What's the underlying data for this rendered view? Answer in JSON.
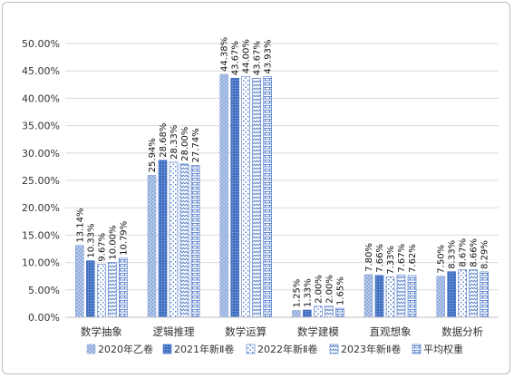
{
  "chart_data": {
    "type": "bar",
    "title": "",
    "xlabel": "",
    "ylabel": "",
    "categories": [
      "数学抽象",
      "逻辑推理",
      "数学运算",
      "数学建模",
      "直观想象",
      "数据分析"
    ],
    "ylim": [
      0,
      50
    ],
    "yticks": [
      "0.00%",
      "5.00%",
      "10.00%",
      "15.00%",
      "20.00%",
      "25.00%",
      "30.00%",
      "35.00%",
      "40.00%",
      "45.00%",
      "50.00%"
    ],
    "grid": true,
    "legend_position": "bottom",
    "series": [
      {
        "name": "2020年乙卷",
        "color": "#8faadc",
        "labels": [
          "13.14%",
          "25.94%",
          "44.38%",
          "1.25%",
          "7.80%",
          "7.50%"
        ],
        "values": [
          13.14,
          25.94,
          44.38,
          1.25,
          7.8,
          7.5
        ]
      },
      {
        "name": "2021年新Ⅱ卷",
        "color": "#4472c4",
        "labels": [
          "10.33%",
          "28.68%",
          "43.67%",
          "1.33%",
          "7.66%",
          "8.33%"
        ],
        "values": [
          10.33,
          28.68,
          43.67,
          1.33,
          7.66,
          8.33
        ]
      },
      {
        "name": "2022年新Ⅱ卷",
        "color": "#4472c4",
        "labels": [
          "9.67%",
          "28.33%",
          "44.00%",
          "2.00%",
          "7.33%",
          "8.67%"
        ],
        "values": [
          9.67,
          28.33,
          44.0,
          2.0,
          7.33,
          8.67
        ]
      },
      {
        "name": "2023年新Ⅱ卷",
        "color": "#4472c4",
        "labels": [
          "10.00%",
          "28.00%",
          "43.67%",
          "2.00%",
          "7.67%",
          "8.66%"
        ],
        "values": [
          10.0,
          28.0,
          43.67,
          2.0,
          7.67,
          8.66
        ]
      },
      {
        "name": "平均权重",
        "color": "#4472c4",
        "labels": [
          "10.79%",
          "27.74%",
          "43.93%",
          "1.65%",
          "7.62%",
          "8.29%"
        ],
        "values": [
          10.79,
          27.74,
          43.93,
          1.65,
          7.62,
          8.29
        ]
      }
    ]
  }
}
